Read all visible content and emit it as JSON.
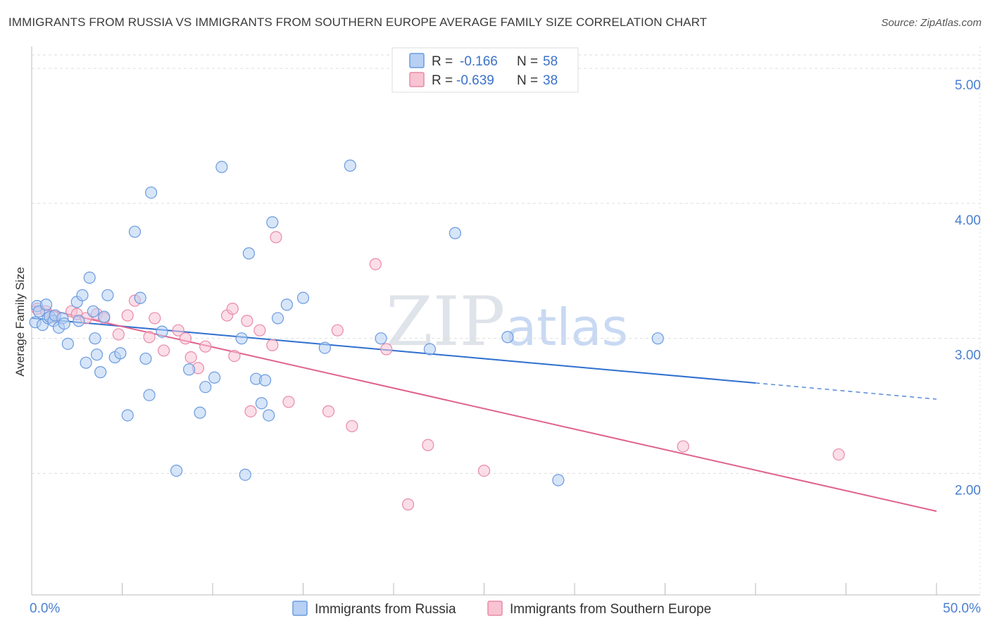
{
  "title": "IMMIGRANTS FROM RUSSIA VS IMMIGRANTS FROM SOUTHERN EUROPE AVERAGE FAMILY SIZE CORRELATION CHART",
  "source": "Source: ZipAtlas.com",
  "watermark": {
    "zip": "ZIP",
    "atlas": "atlas"
  },
  "colors": {
    "russia_fill": "#b7d0f3",
    "russia_stroke": "#6a9be0",
    "russia_line": "#2f6fcf",
    "seurope_fill": "#f8c3d3",
    "seurope_stroke": "#e98aa8",
    "seurope_line": "#e0628e",
    "grid": "#dddddd",
    "axis_text": "#4a7fd0"
  },
  "stats": {
    "russia": {
      "r_label": "R =",
      "r_value": "-0.166",
      "n_label": "N =",
      "n_value": "58"
    },
    "seurope": {
      "r_label": "R =",
      "r_value": "-0.639",
      "n_label": "N =",
      "n_value": "38"
    }
  },
  "chart_data": {
    "type": "scatter",
    "title": "IMMIGRANTS FROM RUSSIA VS IMMIGRANTS FROM SOUTHERN EUROPE AVERAGE FAMILY SIZE CORRELATION CHART",
    "xlabel": "",
    "ylabel": "Average Family Size",
    "xlim": [
      0,
      50
    ],
    "ylim": [
      1.1,
      5.1
    ],
    "x_tick_labels": [
      {
        "value": 0,
        "label": "0.0%"
      },
      {
        "value": 50,
        "label": "50.0%"
      }
    ],
    "y_tick_labels": [
      {
        "value": 2.0,
        "label": "2.00"
      },
      {
        "value": 3.0,
        "label": "3.00"
      },
      {
        "value": 4.0,
        "label": "4.00"
      },
      {
        "value": 5.0,
        "label": "5.00"
      }
    ],
    "grid": true,
    "legend_position": "bottom-center",
    "series": [
      {
        "name": "Immigrants from Russia",
        "trend": {
          "x0": 0,
          "y0": 3.15,
          "x1": 40,
          "y1": 2.67,
          "dashed_to_x": 50,
          "dashed_to_y": 2.55
        },
        "points": [
          [
            0.2,
            3.12
          ],
          [
            0.3,
            3.24
          ],
          [
            0.4,
            3.2
          ],
          [
            0.6,
            3.1
          ],
          [
            0.8,
            3.25
          ],
          [
            0.9,
            3.15
          ],
          [
            1.0,
            3.16
          ],
          [
            1.2,
            3.13
          ],
          [
            1.3,
            3.17
          ],
          [
            1.5,
            3.08
          ],
          [
            1.7,
            3.15
          ],
          [
            1.8,
            3.11
          ],
          [
            2.0,
            2.96
          ],
          [
            2.5,
            3.27
          ],
          [
            2.6,
            3.13
          ],
          [
            2.8,
            3.32
          ],
          [
            3.0,
            2.82
          ],
          [
            3.2,
            3.45
          ],
          [
            3.4,
            3.2
          ],
          [
            3.5,
            3.0
          ],
          [
            3.6,
            2.88
          ],
          [
            3.8,
            2.75
          ],
          [
            4.0,
            3.16
          ],
          [
            4.2,
            3.32
          ],
          [
            4.6,
            2.86
          ],
          [
            4.9,
            2.89
          ],
          [
            5.3,
            2.43
          ],
          [
            5.7,
            3.79
          ],
          [
            6.0,
            3.3
          ],
          [
            6.3,
            2.85
          ],
          [
            6.5,
            2.58
          ],
          [
            6.6,
            4.08
          ],
          [
            7.2,
            3.05
          ],
          [
            8.0,
            2.02
          ],
          [
            8.7,
            2.77
          ],
          [
            9.3,
            2.45
          ],
          [
            9.6,
            2.64
          ],
          [
            10.1,
            2.71
          ],
          [
            10.5,
            4.27
          ],
          [
            11.6,
            3.0
          ],
          [
            11.8,
            1.99
          ],
          [
            12.0,
            3.63
          ],
          [
            12.4,
            2.7
          ],
          [
            12.7,
            2.52
          ],
          [
            12.9,
            2.69
          ],
          [
            13.1,
            2.43
          ],
          [
            13.3,
            3.86
          ],
          [
            13.6,
            3.15
          ],
          [
            14.1,
            3.25
          ],
          [
            15.0,
            3.3
          ],
          [
            16.2,
            2.93
          ],
          [
            17.6,
            4.28
          ],
          [
            19.3,
            3.0
          ],
          [
            22.0,
            2.92
          ],
          [
            23.4,
            3.78
          ],
          [
            26.3,
            3.01
          ],
          [
            29.1,
            1.95
          ],
          [
            34.6,
            3.0
          ]
        ]
      },
      {
        "name": "Immigrants from Southern Europe",
        "trend": {
          "x0": 0,
          "y0": 3.24,
          "x1": 50,
          "y1": 1.72
        },
        "points": [
          [
            0.3,
            3.22
          ],
          [
            0.8,
            3.2
          ],
          [
            1.2,
            3.16
          ],
          [
            2.2,
            3.2
          ],
          [
            2.5,
            3.18
          ],
          [
            3.0,
            3.15
          ],
          [
            3.6,
            3.18
          ],
          [
            4.0,
            3.15
          ],
          [
            4.8,
            3.03
          ],
          [
            5.3,
            3.17
          ],
          [
            5.7,
            3.28
          ],
          [
            6.5,
            3.01
          ],
          [
            6.8,
            3.15
          ],
          [
            7.3,
            2.91
          ],
          [
            8.1,
            3.06
          ],
          [
            8.5,
            3.0
          ],
          [
            8.8,
            2.86
          ],
          [
            9.2,
            2.78
          ],
          [
            9.6,
            2.94
          ],
          [
            10.8,
            3.17
          ],
          [
            11.1,
            3.22
          ],
          [
            11.2,
            2.87
          ],
          [
            11.9,
            3.13
          ],
          [
            12.1,
            2.46
          ],
          [
            12.6,
            3.06
          ],
          [
            13.3,
            2.95
          ],
          [
            13.5,
            3.75
          ],
          [
            14.2,
            2.53
          ],
          [
            16.4,
            2.46
          ],
          [
            16.9,
            3.06
          ],
          [
            17.7,
            2.35
          ],
          [
            19.0,
            3.55
          ],
          [
            19.6,
            2.92
          ],
          [
            20.8,
            1.77
          ],
          [
            21.9,
            2.21
          ],
          [
            25.0,
            2.02
          ],
          [
            44.6,
            2.14
          ],
          [
            36.0,
            2.2
          ]
        ]
      }
    ]
  }
}
